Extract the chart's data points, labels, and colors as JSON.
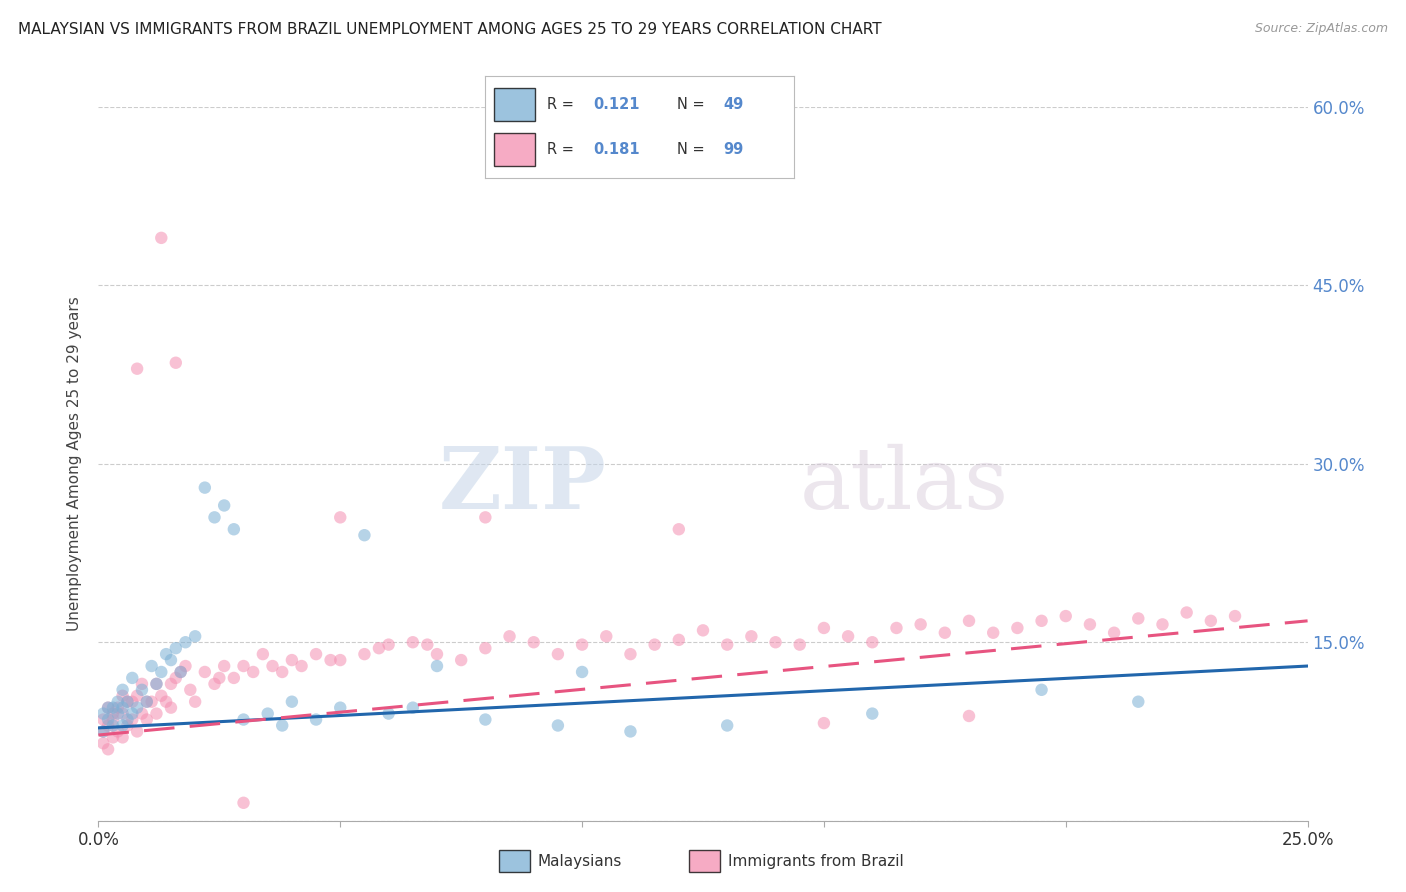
{
  "title": "MALAYSIAN VS IMMIGRANTS FROM BRAZIL UNEMPLOYMENT AMONG AGES 25 TO 29 YEARS CORRELATION CHART",
  "source": "Source: ZipAtlas.com",
  "ylabel": "Unemployment Among Ages 25 to 29 years",
  "xlim": [
    0.0,
    0.25
  ],
  "ylim": [
    0.0,
    0.6
  ],
  "watermark_zip": "ZIP",
  "watermark_atlas": "atlas",
  "legend": {
    "malaysians_R": "0.121",
    "malaysians_N": "49",
    "brazil_R": "0.181",
    "brazil_N": "99"
  },
  "malaysians_color": "#7bafd4",
  "brazil_color": "#f48fb1",
  "malaysians_line_color": "#2166ac",
  "brazil_line_color": "#e75480",
  "background_color": "#ffffff",
  "grid_color": "#cccccc",
  "title_color": "#222222",
  "right_tick_color": "#5588cc",
  "marker_size": 80,
  "marker_alpha": 0.55,
  "line_width": 2.2,
  "malaysians_x": [
    0.001,
    0.001,
    0.002,
    0.002,
    0.003,
    0.003,
    0.004,
    0.004,
    0.005,
    0.005,
    0.005,
    0.006,
    0.006,
    0.007,
    0.007,
    0.008,
    0.009,
    0.01,
    0.011,
    0.012,
    0.013,
    0.014,
    0.015,
    0.016,
    0.017,
    0.018,
    0.02,
    0.022,
    0.024,
    0.026,
    0.028,
    0.03,
    0.035,
    0.038,
    0.04,
    0.045,
    0.05,
    0.055,
    0.06,
    0.065,
    0.07,
    0.08,
    0.095,
    0.1,
    0.11,
    0.13,
    0.16,
    0.195,
    0.215
  ],
  "malaysians_y": [
    0.075,
    0.09,
    0.085,
    0.095,
    0.08,
    0.095,
    0.09,
    0.1,
    0.08,
    0.095,
    0.11,
    0.085,
    0.1,
    0.09,
    0.12,
    0.095,
    0.11,
    0.1,
    0.13,
    0.115,
    0.125,
    0.14,
    0.135,
    0.145,
    0.125,
    0.15,
    0.155,
    0.28,
    0.255,
    0.265,
    0.245,
    0.085,
    0.09,
    0.08,
    0.1,
    0.085,
    0.095,
    0.24,
    0.09,
    0.095,
    0.13,
    0.085,
    0.08,
    0.125,
    0.075,
    0.08,
    0.09,
    0.11,
    0.1
  ],
  "brazil_x": [
    0.001,
    0.001,
    0.001,
    0.002,
    0.002,
    0.002,
    0.003,
    0.003,
    0.003,
    0.004,
    0.004,
    0.005,
    0.005,
    0.005,
    0.006,
    0.006,
    0.007,
    0.007,
    0.008,
    0.008,
    0.009,
    0.009,
    0.01,
    0.01,
    0.011,
    0.012,
    0.012,
    0.013,
    0.014,
    0.015,
    0.015,
    0.016,
    0.017,
    0.018,
    0.019,
    0.02,
    0.022,
    0.024,
    0.025,
    0.026,
    0.028,
    0.03,
    0.032,
    0.034,
    0.036,
    0.038,
    0.04,
    0.042,
    0.045,
    0.048,
    0.05,
    0.055,
    0.058,
    0.06,
    0.065,
    0.068,
    0.07,
    0.075,
    0.08,
    0.085,
    0.09,
    0.095,
    0.1,
    0.105,
    0.11,
    0.115,
    0.12,
    0.125,
    0.13,
    0.135,
    0.14,
    0.145,
    0.15,
    0.155,
    0.16,
    0.165,
    0.17,
    0.175,
    0.18,
    0.185,
    0.19,
    0.195,
    0.2,
    0.205,
    0.21,
    0.215,
    0.22,
    0.225,
    0.23,
    0.235,
    0.05,
    0.08,
    0.12,
    0.15,
    0.18,
    0.013,
    0.016,
    0.008,
    0.03
  ],
  "brazil_y": [
    0.065,
    0.075,
    0.085,
    0.06,
    0.08,
    0.095,
    0.07,
    0.085,
    0.09,
    0.075,
    0.095,
    0.07,
    0.09,
    0.105,
    0.08,
    0.1,
    0.085,
    0.1,
    0.075,
    0.105,
    0.09,
    0.115,
    0.085,
    0.1,
    0.1,
    0.09,
    0.115,
    0.105,
    0.1,
    0.095,
    0.115,
    0.12,
    0.125,
    0.13,
    0.11,
    0.1,
    0.125,
    0.115,
    0.12,
    0.13,
    0.12,
    0.13,
    0.125,
    0.14,
    0.13,
    0.125,
    0.135,
    0.13,
    0.14,
    0.135,
    0.135,
    0.14,
    0.145,
    0.148,
    0.15,
    0.148,
    0.14,
    0.135,
    0.145,
    0.155,
    0.15,
    0.14,
    0.148,
    0.155,
    0.14,
    0.148,
    0.152,
    0.16,
    0.148,
    0.155,
    0.15,
    0.148,
    0.162,
    0.155,
    0.15,
    0.162,
    0.165,
    0.158,
    0.168,
    0.158,
    0.162,
    0.168,
    0.172,
    0.165,
    0.158,
    0.17,
    0.165,
    0.175,
    0.168,
    0.172,
    0.255,
    0.255,
    0.245,
    0.082,
    0.088,
    0.49,
    0.385,
    0.38,
    0.015
  ]
}
